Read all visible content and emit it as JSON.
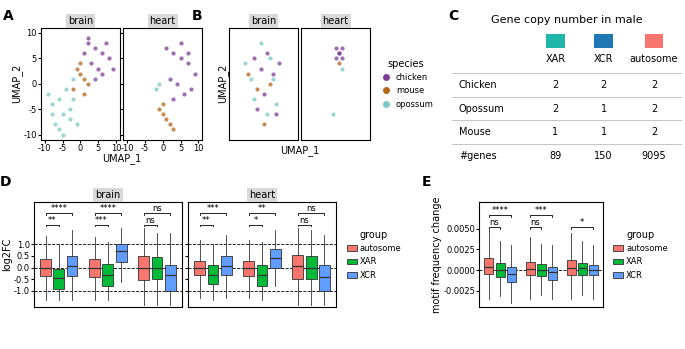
{
  "chart_data": [
    {
      "type": "scatter",
      "label": "A",
      "x_label": "UMAP_1",
      "y_label": "UMAP_2",
      "xlim": [
        -11,
        11
      ],
      "ylim": [
        -11,
        11
      ],
      "xticks": [
        -10,
        -5,
        0,
        5,
        10
      ],
      "yticks": [
        -10,
        -5,
        0,
        5,
        10
      ],
      "series": [
        {
          "name": "chicken",
          "color": "#7E3D97"
        },
        {
          "name": "mouse",
          "color": "#B5651D"
        },
        {
          "name": "opossum",
          "color": "#7BC8C4"
        }
      ],
      "facets": [
        {
          "title": "brain",
          "points": [
            {
              "species": "opossum",
              "x": [
                -9,
                -8,
                -6,
                -5,
                -3,
                -7,
                -4,
                -2,
                -6,
                -1,
                -5,
                -3,
                -8,
                -2
              ],
              "y": [
                -2,
                -4,
                -3,
                -6,
                -7,
                -8,
                -1,
                -3,
                -9,
                -8,
                -10,
                -5,
                -6,
                1
              ]
            },
            {
              "species": "mouse",
              "x": [
                -1,
                0,
                1,
                2,
                0,
                -2,
                1
              ],
              "y": [
                3,
                2,
                1,
                0,
                4,
                -1,
                -2
              ]
            },
            {
              "species": "chicken",
              "x": [
                2,
                4,
                6,
                8,
                3,
                5,
                7,
                1,
                6,
                9,
                4,
                2
              ],
              "y": [
                8,
                7,
                6,
                5,
                4,
                3,
                8,
                6,
                2,
                3,
                1,
                9
              ]
            }
          ]
        },
        {
          "title": "heart",
          "points": [
            {
              "species": "opossum",
              "x": [
                -2,
                -1
              ],
              "y": [
                -1,
                0
              ]
            },
            {
              "species": "mouse",
              "x": [
                -1,
                0,
                1,
                2,
                0,
                3
              ],
              "y": [
                -5,
                -6,
                -7,
                -8,
                -4,
                -9
              ]
            },
            {
              "species": "chicken",
              "x": [
                1,
                3,
                5,
                7,
                9,
                2,
                4,
                6,
                8,
                5,
                3,
                7
              ],
              "y": [
                7,
                6,
                5,
                4,
                2,
                1,
                0,
                -2,
                -1,
                8,
                -3,
                6
              ]
            }
          ]
        }
      ]
    },
    {
      "type": "scatter",
      "label": "B",
      "x_label": "UMAP_1",
      "y_label": "UMAP_2",
      "xlim": [
        -11,
        11
      ],
      "ylim": [
        -11,
        11
      ],
      "tick_labels": false,
      "legend": "right",
      "legend_title": "species",
      "series": [
        {
          "name": "chicken",
          "color": "#7E3D97"
        },
        {
          "name": "mouse",
          "color": "#B5651D"
        },
        {
          "name": "opossum",
          "color": "#7BC8C4"
        }
      ],
      "facets": [
        {
          "title": "brain",
          "points": [
            {
              "species": "opossum",
              "x": [
                -6,
                -4,
                -3,
                1,
                2,
                4,
                -1,
                3
              ],
              "y": [
                4,
                1,
                -3,
                -6,
                5,
                -4,
                8,
                1
              ]
            },
            {
              "species": "mouse",
              "x": [
                -5,
                -2,
                2,
                0
              ],
              "y": [
                2,
                -1,
                0,
                -8
              ]
            },
            {
              "species": "chicken",
              "x": [
                -3,
                -1,
                1,
                3,
                5,
                0,
                -2,
                4
              ],
              "y": [
                5,
                3,
                6,
                2,
                4,
                -2,
                -5,
                -6
              ]
            }
          ]
        },
        {
          "title": "heart",
          "points": [
            {
              "species": "opossum",
              "x": [
                -1,
                2
              ],
              "y": [
                -6,
                3
              ]
            },
            {
              "species": "mouse",
              "x": [
                1
              ],
              "y": [
                4
              ]
            },
            {
              "species": "chicken",
              "x": [
                0,
                1,
                2,
                1,
                0,
                2
              ],
              "y": [
                5,
                6,
                7,
                6,
                7,
                5
              ]
            }
          ]
        }
      ]
    },
    {
      "type": "table",
      "label": "C",
      "title": "Gene copy number in male",
      "columns": [
        {
          "name": "XAR",
          "color": "#1FB5A8"
        },
        {
          "name": "XCR",
          "color": "#1F78B4"
        },
        {
          "name": "autosome",
          "color": "#F8766D"
        }
      ],
      "rows": [
        {
          "name": "Chicken",
          "values": [
            2,
            2,
            2
          ]
        },
        {
          "name": "Opossum",
          "values": [
            2,
            1,
            2
          ]
        },
        {
          "name": "Mouse",
          "values": [
            1,
            1,
            2
          ]
        },
        {
          "name": "#genes",
          "values": [
            89,
            150,
            9095
          ]
        }
      ]
    },
    {
      "type": "box",
      "label": "D",
      "y_label": "log2FC",
      "ylim": [
        -1.7,
        2.8
      ],
      "yticks": [
        -1.0,
        -0.5,
        0.0,
        0.5,
        1.0
      ],
      "reference_lines": [
        -1.0,
        0.0,
        1.0
      ],
      "legend": "right",
      "legend_title": "group",
      "series": [
        {
          "name": "autosome",
          "color": "#F8766D"
        },
        {
          "name": "XAR",
          "color": "#00BA38"
        },
        {
          "name": "XCR",
          "color": "#619CFF"
        }
      ],
      "facets": [
        {
          "title": "brain",
          "categories": [
            null,
            null,
            null
          ],
          "values": {
            "autosome": [
              {
                "whislo": -1.4,
                "q1": -0.35,
                "med": 0.0,
                "q3": 0.35,
                "whishi": 1.35
              },
              {
                "whislo": -1.4,
                "q1": -0.4,
                "med": 0.0,
                "q3": 0.35,
                "whishi": 1.3
              },
              {
                "whislo": -1.6,
                "q1": -0.55,
                "med": 0.0,
                "q3": 0.5,
                "whishi": 1.7
              }
            ],
            "XAR": [
              {
                "whislo": -1.4,
                "q1": -0.9,
                "med": -0.45,
                "q3": -0.05,
                "whishi": 1.0
              },
              {
                "whislo": -1.4,
                "q1": -0.8,
                "med": -0.3,
                "q3": 0.15,
                "whishi": 1.1
              },
              {
                "whislo": -1.6,
                "q1": -0.5,
                "med": 0.0,
                "q3": 0.45,
                "whishi": 1.5
              }
            ],
            "XCR": [
              {
                "whislo": -1.4,
                "q1": -0.35,
                "med": 0.05,
                "q3": 0.5,
                "whishi": 1.6
              },
              {
                "whislo": -0.6,
                "q1": 0.25,
                "med": 0.7,
                "q3": 1.0,
                "whishi": 1.7
              },
              {
                "whislo": -1.6,
                "q1": -1.0,
                "med": -0.3,
                "q3": 0.1,
                "whishi": 1.5
              }
            ]
          },
          "significance": [
            {
              "category": 0,
              "pair": [
                "autosome",
                "XAR"
              ],
              "label": "**"
            },
            {
              "category": 0,
              "pair": [
                "autosome",
                "XCR"
              ],
              "label": "****"
            },
            {
              "category": 1,
              "pair": [
                "autosome",
                "XAR"
              ],
              "label": "***"
            },
            {
              "category": 1,
              "pair": [
                "autosome",
                "XCR"
              ],
              "label": "****"
            },
            {
              "category": 2,
              "pair": [
                "autosome",
                "XAR"
              ],
              "label": "ns"
            },
            {
              "category": 2,
              "pair": [
                "autosome",
                "XCR"
              ],
              "label": "ns"
            }
          ]
        },
        {
          "title": "heart",
          "categories": [
            null,
            null,
            null
          ],
          "values": {
            "autosome": [
              {
                "whislo": -1.3,
                "q1": -0.3,
                "med": 0.0,
                "q3": 0.3,
                "whishi": 1.2
              },
              {
                "whislo": -1.3,
                "q1": -0.35,
                "med": 0.0,
                "q3": 0.3,
                "whishi": 1.2
              },
              {
                "whislo": -1.6,
                "q1": -0.5,
                "med": 0.05,
                "q3": 0.55,
                "whishi": 1.7
              }
            ],
            "XAR": [
              {
                "whislo": -1.4,
                "q1": -0.7,
                "med": -0.3,
                "q3": 0.1,
                "whishi": 1.0
              },
              {
                "whislo": -1.4,
                "q1": -0.8,
                "med": -0.3,
                "q3": 0.1,
                "whishi": 1.1
              },
              {
                "whislo": -1.6,
                "q1": -0.5,
                "med": 0.0,
                "q3": 0.5,
                "whishi": 1.6
              }
            ],
            "XCR": [
              {
                "whislo": -1.3,
                "q1": -0.3,
                "med": 0.05,
                "q3": 0.5,
                "whishi": 1.4
              },
              {
                "whislo": -0.8,
                "q1": 0.0,
                "med": 0.4,
                "q3": 0.8,
                "whishi": 1.6
              },
              {
                "whislo": -1.6,
                "q1": -1.0,
                "med": -0.4,
                "q3": 0.1,
                "whishi": 1.4
              }
            ]
          },
          "significance": [
            {
              "category": 0,
              "pair": [
                "autosome",
                "XAR"
              ],
              "label": "**"
            },
            {
              "category": 0,
              "pair": [
                "autosome",
                "XCR"
              ],
              "label": "***"
            },
            {
              "category": 1,
              "pair": [
                "autosome",
                "XAR"
              ],
              "label": "*"
            },
            {
              "category": 1,
              "pair": [
                "autosome",
                "XCR"
              ],
              "label": "**"
            },
            {
              "category": 2,
              "pair": [
                "autosome",
                "XAR"
              ],
              "label": "ns"
            },
            {
              "category": 2,
              "pair": [
                "autosome",
                "XCR"
              ],
              "label": "ns"
            }
          ]
        }
      ]
    },
    {
      "type": "box",
      "label": "E",
      "y_label": "motif frequency change",
      "ylim": [
        -0.0045,
        0.0082
      ],
      "yticks": [
        {
          "value": -0.0025,
          "label": "-0.0025"
        },
        {
          "value": 0.0,
          "label": "0.0000"
        },
        {
          "value": 0.0025,
          "label": "0.0025"
        },
        {
          "value": 0.005,
          "label": "0.0050"
        }
      ],
      "reference_lines": [
        0.0
      ],
      "legend": "right",
      "legend_title": "group",
      "series": [
        {
          "name": "autosome",
          "color": "#F8766D"
        },
        {
          "name": "XAR",
          "color": "#00BA38"
        },
        {
          "name": "XCR",
          "color": "#619CFF"
        }
      ],
      "facets": [
        {
          "categories": [
            null,
            null,
            null
          ],
          "values": {
            "autosome": [
              {
                "whislo": -0.0035,
                "q1": -0.0005,
                "med": 0.0004,
                "q3": 0.0014,
                "whishi": 0.0048
              },
              {
                "whislo": -0.0035,
                "q1": -0.0006,
                "med": 0.0001,
                "q3": 0.001,
                "whishi": 0.004
              },
              {
                "whislo": -0.0035,
                "q1": -0.0006,
                "med": 0.0002,
                "q3": 0.0012,
                "whishi": 0.0045
              }
            ],
            "XAR": [
              {
                "whislo": -0.0032,
                "q1": -0.0008,
                "med": 0.0,
                "q3": 0.0008,
                "whishi": 0.0035
              },
              {
                "whislo": -0.003,
                "q1": -0.0007,
                "med": 0.0,
                "q3": 0.0007,
                "whishi": 0.0032
              },
              {
                "whislo": -0.003,
                "q1": -0.0006,
                "med": 0.0002,
                "q3": 0.0009,
                "whishi": 0.0035
              }
            ],
            "XCR": [
              {
                "whislo": -0.004,
                "q1": -0.0015,
                "med": -0.0005,
                "q3": 0.0004,
                "whishi": 0.003
              },
              {
                "whislo": -0.0035,
                "q1": -0.0012,
                "med": -0.0003,
                "q3": 0.0004,
                "whishi": 0.003
              },
              {
                "whislo": -0.0035,
                "q1": -0.0006,
                "med": 0.0,
                "q3": 0.0006,
                "whishi": 0.003
              }
            ]
          },
          "significance": [
            {
              "category": 0,
              "pair": [
                "autosome",
                "XAR"
              ],
              "label": "ns"
            },
            {
              "category": 0,
              "pair": [
                "autosome",
                "XCR"
              ],
              "label": "****"
            },
            {
              "category": 1,
              "pair": [
                "autosome",
                "XAR"
              ],
              "label": "ns"
            },
            {
              "category": 1,
              "pair": [
                "autosome",
                "XCR"
              ],
              "label": "***"
            },
            {
              "category": 2,
              "pair": [
                "autosome",
                "XCR"
              ],
              "label": "*"
            }
          ]
        }
      ]
    }
  ]
}
